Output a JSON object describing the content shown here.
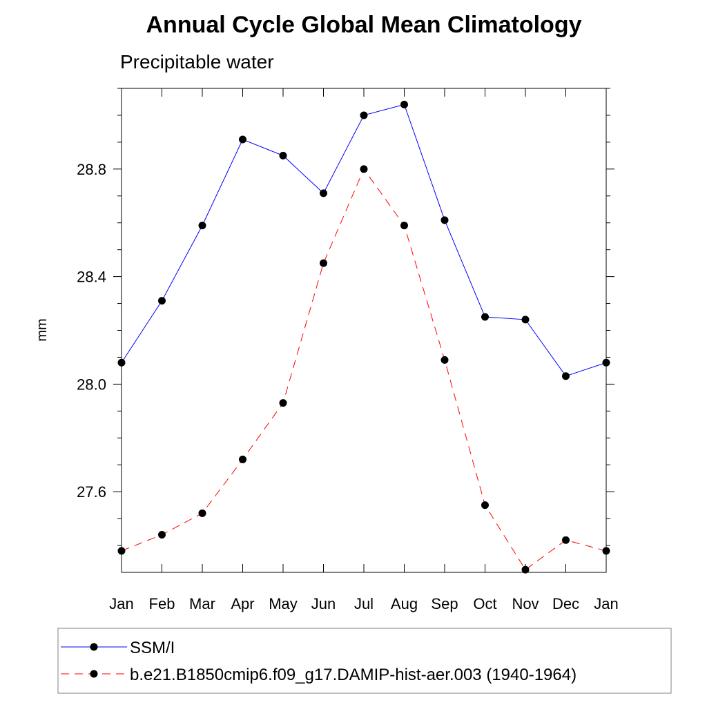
{
  "title": "Annual Cycle Global Mean Climatology",
  "subtitle": "Precipitable water",
  "chart_data": {
    "type": "line",
    "title": "Annual Cycle Global Mean Climatology",
    "subtitle": "Precipitable water",
    "xlabel": "",
    "ylabel": "mm",
    "categories": [
      "Jan",
      "Feb",
      "Mar",
      "Apr",
      "May",
      "Jun",
      "Jul",
      "Aug",
      "Sep",
      "Oct",
      "Nov",
      "Dec",
      "Jan"
    ],
    "ylim": [
      27.3,
      29.1
    ],
    "yticks": [
      27.6,
      28.0,
      28.4,
      28.8
    ],
    "ytick_labels": [
      "27.6",
      "28.0",
      "28.4",
      "28.8"
    ],
    "y_minor_step": 0.1,
    "grid": false,
    "legend_position": "bottom",
    "series": [
      {
        "name": "SSM/I",
        "color": "#0000ff",
        "dash": "solid",
        "marker": "filled-circle",
        "values": [
          28.08,
          28.31,
          28.59,
          28.91,
          28.85,
          28.71,
          29.0,
          29.04,
          28.61,
          28.25,
          28.24,
          28.03,
          28.08
        ]
      },
      {
        "name": "b.e21.B1850cmip6.f09_g17.DAMIP-hist-aer.003 (1940-1964)",
        "color": "#ff0000",
        "dash": "dashed",
        "marker": "filled-circle",
        "values": [
          27.38,
          27.44,
          27.52,
          27.72,
          27.93,
          28.45,
          28.8,
          28.59,
          28.09,
          27.55,
          27.31,
          27.42,
          27.38
        ]
      }
    ]
  }
}
